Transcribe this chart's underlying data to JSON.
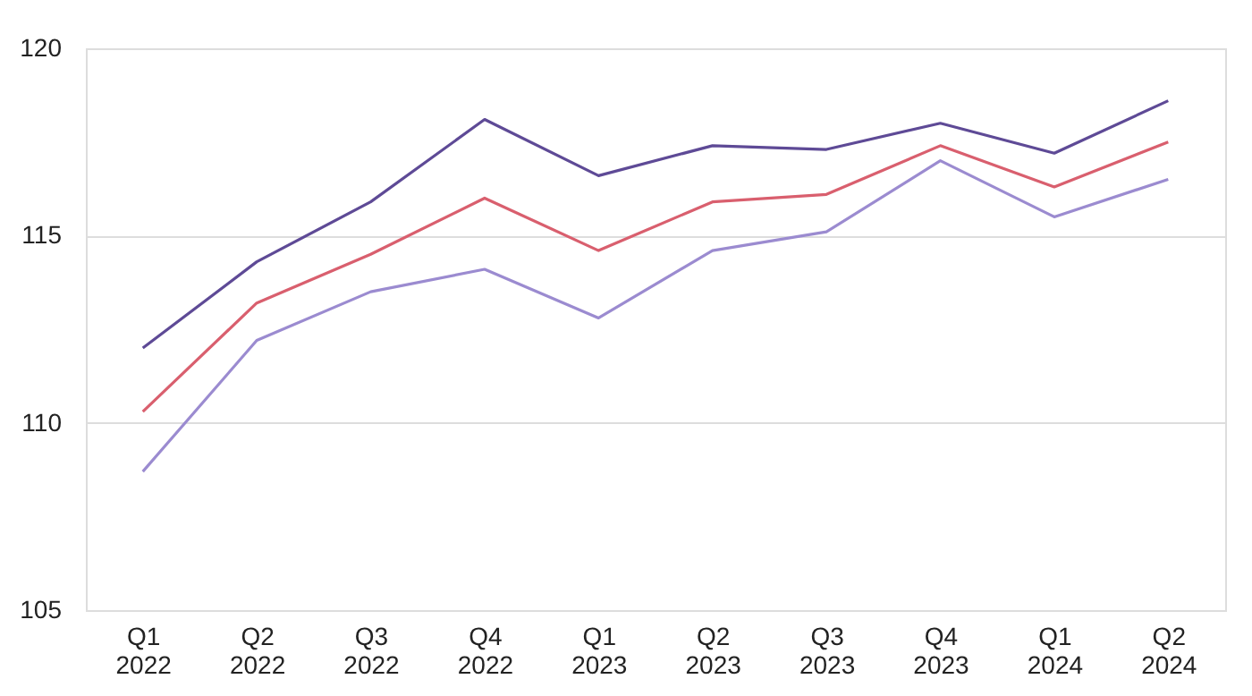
{
  "chart_data": {
    "type": "line",
    "categories": [
      "Q1 2022",
      "Q2 2022",
      "Q3 2022",
      "Q4 2022",
      "Q1 2023",
      "Q2 2023",
      "Q3 2023",
      "Q4 2023",
      "Q1 2024",
      "Q2 2024"
    ],
    "series": [
      {
        "color": "#5e4a96",
        "values": [
          112.0,
          114.3,
          115.9,
          118.1,
          116.6,
          117.4,
          117.3,
          118.0,
          117.2,
          118.6
        ]
      },
      {
        "color": "#d95f6e",
        "values": [
          110.3,
          113.2,
          114.5,
          116.0,
          114.6,
          115.9,
          116.1,
          117.4,
          116.3,
          117.5
        ]
      },
      {
        "color": "#9b8bd0",
        "values": [
          108.7,
          112.2,
          113.5,
          114.1,
          112.8,
          114.6,
          115.1,
          117.0,
          115.5,
          116.5
        ]
      }
    ],
    "ylim": [
      105,
      120
    ],
    "yticks": [
      105,
      110,
      115,
      120
    ],
    "grid": "y",
    "legend": false,
    "marker": "none",
    "line_style": "solid"
  }
}
